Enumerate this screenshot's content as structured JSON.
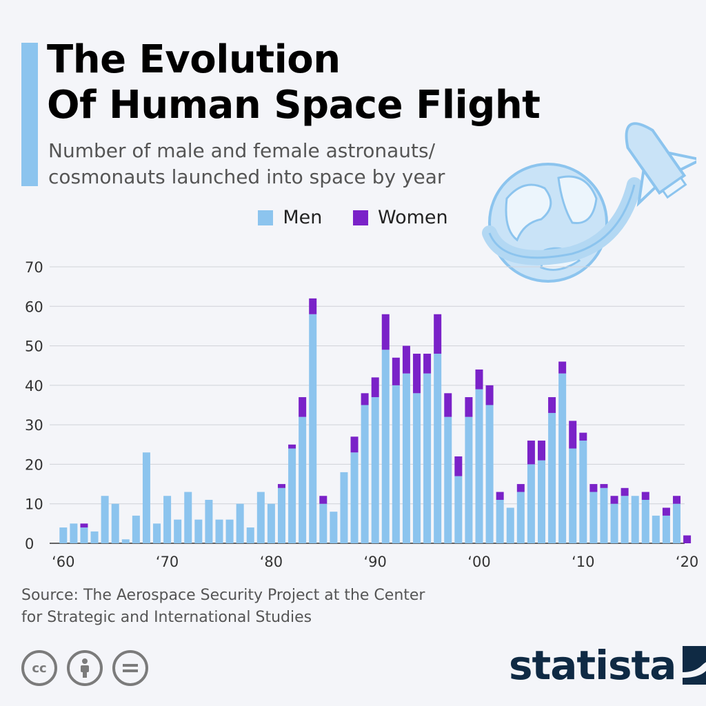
{
  "header": {
    "title_line1": "The Evolution",
    "title_line2": "Of Human Space Flight",
    "subtitle_line1": "Number of male and female astronauts/",
    "subtitle_line2": "cosmonauts launched into space by year"
  },
  "legend": {
    "men": "Men",
    "women": "Women"
  },
  "colors": {
    "men": "#8cc4ee",
    "women": "#7a22c8",
    "accent": "#8cc4ee",
    "grid": "#cfd2d8"
  },
  "footer": {
    "source_line1": "Source: The Aerospace Security Project at the Center",
    "source_line2": "for Strategic and International Studies",
    "brand": "statista",
    "cc_icons": [
      "cc-icon",
      "by-icon",
      "nd-icon"
    ]
  },
  "chart_data": {
    "type": "bar",
    "stacked": true,
    "x": [
      1960,
      1961,
      1962,
      1963,
      1964,
      1965,
      1966,
      1967,
      1968,
      1969,
      1970,
      1971,
      1972,
      1973,
      1974,
      1975,
      1976,
      1977,
      1978,
      1979,
      1980,
      1981,
      1982,
      1983,
      1984,
      1985,
      1986,
      1987,
      1988,
      1989,
      1990,
      1991,
      1992,
      1993,
      1994,
      1995,
      1996,
      1997,
      1998,
      1999,
      2000,
      2001,
      2002,
      2003,
      2004,
      2005,
      2006,
      2007,
      2008,
      2009,
      2010,
      2011,
      2012,
      2013,
      2014,
      2015,
      2016,
      2017,
      2018,
      2019,
      2020
    ],
    "series": [
      {
        "name": "Men",
        "values": [
          4,
          5,
          4,
          3,
          12,
          10,
          1,
          7,
          23,
          5,
          12,
          6,
          13,
          6,
          11,
          6,
          6,
          10,
          4,
          13,
          10,
          14,
          24,
          32,
          58,
          10,
          8,
          18,
          23,
          35,
          37,
          49,
          40,
          43,
          38,
          43,
          48,
          32,
          17,
          32,
          39,
          35,
          11,
          9,
          13,
          20,
          21,
          33,
          43,
          24,
          26,
          13,
          14,
          10,
          12,
          12,
          11,
          7,
          7,
          10,
          0
        ]
      },
      {
        "name": "Women",
        "values": [
          0,
          0,
          1,
          0,
          0,
          0,
          0,
          0,
          0,
          0,
          0,
          0,
          0,
          0,
          0,
          0,
          0,
          0,
          0,
          0,
          0,
          1,
          1,
          5,
          4,
          2,
          0,
          0,
          4,
          3,
          5,
          9,
          7,
          7,
          10,
          5,
          10,
          6,
          5,
          5,
          5,
          5,
          2,
          0,
          2,
          6,
          5,
          4,
          3,
          7,
          2,
          2,
          1,
          2,
          2,
          0,
          2,
          0,
          2,
          2,
          2
        ]
      }
    ],
    "x_tick_labels": [
      "‘60",
      "‘70",
      "‘80",
      "‘90",
      "‘00",
      "‘10",
      "‘20"
    ],
    "x_tick_years": [
      1960,
      1970,
      1980,
      1990,
      2000,
      2010,
      2020
    ],
    "y_ticks": [
      0,
      10,
      20,
      30,
      40,
      50,
      60,
      70
    ],
    "ylim": [
      0,
      70
    ],
    "grid": true,
    "legend_position": "top-center",
    "title": "The Evolution Of Human Space Flight",
    "xlabel": "",
    "ylabel": ""
  }
}
